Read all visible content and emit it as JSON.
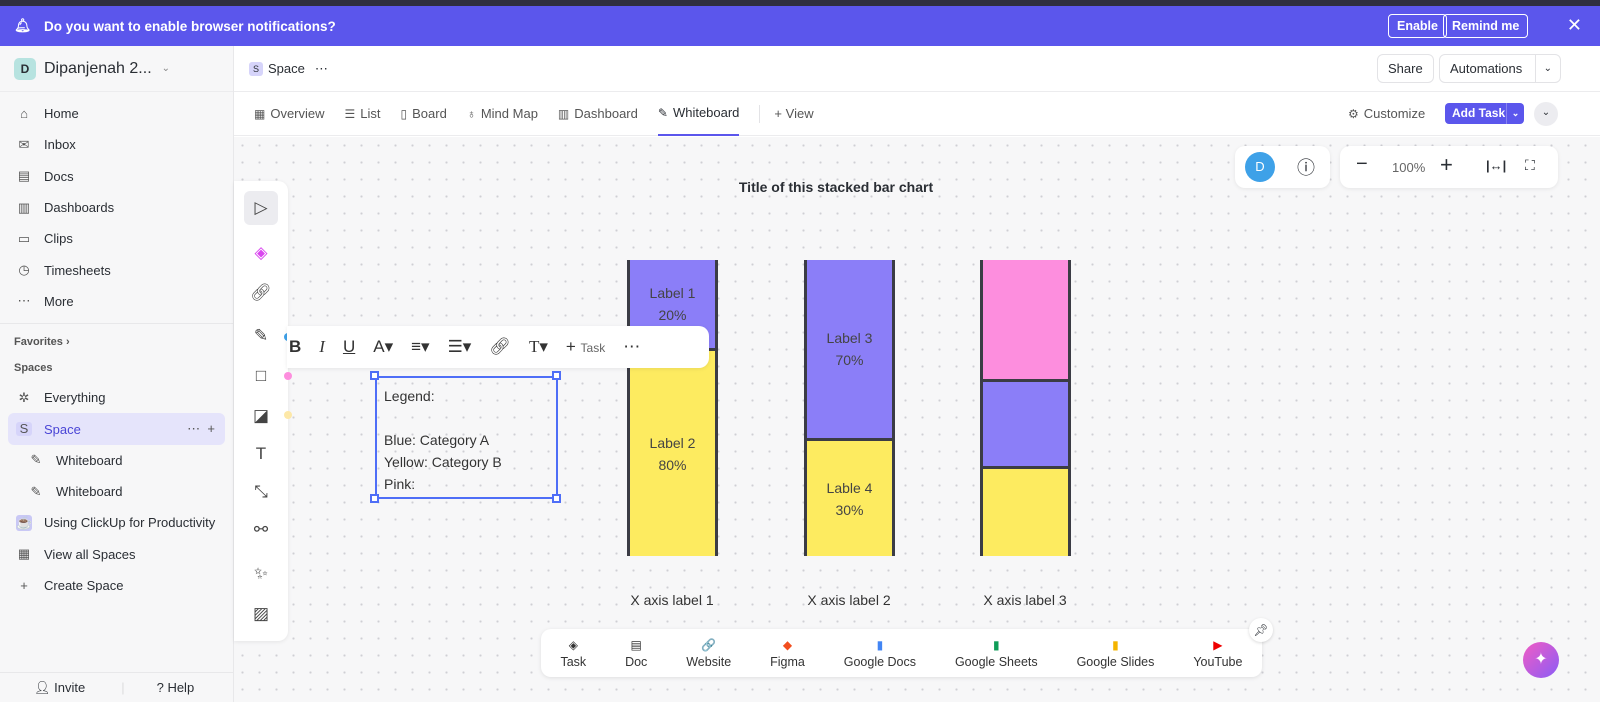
{
  "banner": {
    "text": "Do you want to enable browser notifications?",
    "enable": "Enable",
    "remind": "Remind me"
  },
  "workspace": {
    "initial": "D",
    "name": "Dipanjenah 2..."
  },
  "nav": [
    {
      "label": "Home",
      "icon": "home-icon",
      "g": "⌂"
    },
    {
      "label": "Inbox",
      "icon": "inbox-icon",
      "g": "✉"
    },
    {
      "label": "Docs",
      "icon": "docs-icon",
      "g": "▤"
    },
    {
      "label": "Dashboards",
      "icon": "dashboard-icon",
      "g": "▥"
    },
    {
      "label": "Clips",
      "icon": "clips-icon",
      "g": "▭"
    },
    {
      "label": "Timesheets",
      "icon": "timesheet-icon",
      "g": "◷"
    },
    {
      "label": "More",
      "icon": "more-icon",
      "g": "⋯"
    }
  ],
  "favorites": "Favorites",
  "spaces_label": "Spaces",
  "spaces": {
    "everything": "Everything",
    "space": "Space",
    "space_initial": "S",
    "wb1": "Whiteboard",
    "wb2": "Whiteboard",
    "clickup": "Using ClickUp for Productivity",
    "view_all": "View all Spaces",
    "create": "Create Space"
  },
  "footer": {
    "invite": "Invite",
    "help": "Help"
  },
  "header": {
    "space": "Space",
    "share": "Share",
    "automations": "Automations"
  },
  "tabs": [
    {
      "label": "Overview",
      "g": "▦"
    },
    {
      "label": "List",
      "g": "☰"
    },
    {
      "label": "Board",
      "g": "▯"
    },
    {
      "label": "Mind Map",
      "g": "♁"
    },
    {
      "label": "Dashboard",
      "g": "▥"
    },
    {
      "label": "Whiteboard",
      "g": "✎"
    }
  ],
  "tabs_extra": {
    "view": "View",
    "customize": "Customize",
    "add_task": "Add Task"
  },
  "zoom": {
    "level": "100%",
    "avatar": "D"
  },
  "colors": {
    "accent": "#5b56ec",
    "purple": "#8b7ef8",
    "yellow": "#fdeb60",
    "pink": "#fd8ede"
  },
  "board": {
    "title": "Title of this stacked bar chart",
    "bars": [
      {
        "x_label": "X axis label 1",
        "segments": [
          {
            "label": "Label 1",
            "value": "20%",
            "color": "purple"
          },
          {
            "label": "Label 2",
            "value": "80%",
            "color": "yellow"
          }
        ]
      },
      {
        "x_label": "X axis label 2",
        "segments": [
          {
            "label": "Label 3",
            "value": "70%",
            "color": "purple"
          },
          {
            "label": "Lable 4",
            "value": "30%",
            "color": "yellow"
          }
        ]
      },
      {
        "x_label": "X axis label 3",
        "segments": [
          {
            "label": "",
            "value": "",
            "color": "pink"
          },
          {
            "label": "",
            "value": "",
            "color": "purple"
          },
          {
            "label": "",
            "value": "",
            "color": "yellow"
          }
        ]
      }
    ],
    "legend": [
      "Legend:",
      "",
      "Blue: Category A",
      "Yellow: Category B",
      "Pink:"
    ]
  },
  "format_toolbar": {
    "task": "Task"
  },
  "embeds": [
    {
      "label": "Task",
      "g": "◈",
      "c": "#333"
    },
    {
      "label": "Doc",
      "g": "▤",
      "c": "#333"
    },
    {
      "label": "Website",
      "g": "🔗",
      "c": "#333"
    },
    {
      "label": "Figma",
      "g": "◆",
      "c": "#f24e1e"
    },
    {
      "label": "Google Docs",
      "g": "▮",
      "c": "#4285f4"
    },
    {
      "label": "Google Sheets",
      "g": "▮",
      "c": "#0f9d58"
    },
    {
      "label": "Google Slides",
      "g": "▮",
      "c": "#f4b400"
    },
    {
      "label": "YouTube",
      "g": "▶",
      "c": "#e00"
    }
  ]
}
